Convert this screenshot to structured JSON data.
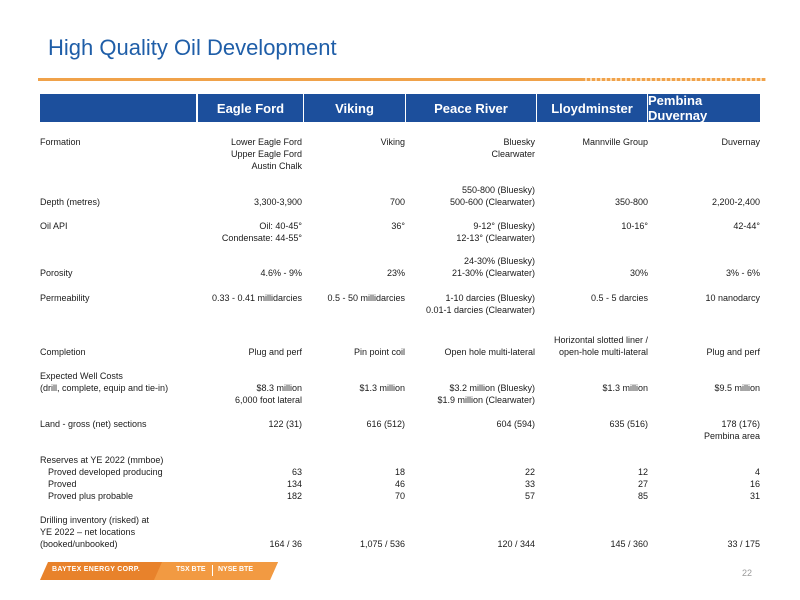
{
  "title": "High Quality Oil Development",
  "columns": [
    "Eagle Ford",
    "Viking",
    "Peace River",
    "Lloydminster",
    "Pembina Duvernay"
  ],
  "rows": {
    "formation": {
      "label": "Formation",
      "c1": [
        "Lower Eagle Ford",
        "Upper Eagle Ford",
        "Austin Chalk"
      ],
      "c2": [
        "Viking"
      ],
      "c3": [
        "Bluesky",
        "Clearwater"
      ],
      "c4": [
        "Mannville Group"
      ],
      "c5": [
        "Duvernay"
      ]
    },
    "depth": {
      "label": "Depth (metres)",
      "c1": "3,300-3,900",
      "c2": "700",
      "c3": [
        "550-800 (Bluesky)",
        "500-600 (Clearwater)"
      ],
      "c4": "350-800",
      "c5": "2,200-2,400"
    },
    "oil_api": {
      "label": "Oil API",
      "c1": [
        "Oil: 40-45°",
        "Condensate: 44-55°"
      ],
      "c2": "36°",
      "c3": [
        "9-12° (Bluesky)",
        "12-13° (Clearwater)"
      ],
      "c4": "10-16°",
      "c5": "42-44°"
    },
    "porosity": {
      "label": "Porosity",
      "c1": "4.6% - 9%",
      "c2": "23%",
      "c3": [
        "24-30% (Bluesky)",
        "21-30% (Clearwater)"
      ],
      "c4": "30%",
      "c5": "3% - 6%"
    },
    "permeability": {
      "label": "Permeability",
      "c1": "0.33 - 0.41 millidarcies",
      "c2": "0.5 - 50 millidarcies",
      "c3": [
        "1-10 darcies (Bluesky)",
        "0.01-1 darcies (Clearwater)"
      ],
      "c4": "0.5 - 5 darcies",
      "c5": "10 nanodarcy"
    },
    "completion": {
      "label": "Completion",
      "c1": "Plug and perf",
      "c2": "Pin point coil",
      "c3": "Open hole multi-lateral",
      "c4": [
        "Horizontal slotted liner /",
        "open-hole multi-lateral"
      ],
      "c5": "Plug and perf"
    },
    "well_costs": {
      "label": [
        "Expected Well Costs",
        "(drill, complete, equip and tie-in)"
      ],
      "c1": [
        "$8.3 million",
        "6,000 foot lateral"
      ],
      "c2": "$1.3 million",
      "c3": [
        "$3.2 million (Bluesky)",
        "$1.9 million (Clearwater)"
      ],
      "c4": "$1.3 million",
      "c5": "$9.5 million"
    },
    "land": {
      "label": "Land - gross (net) sections",
      "c1": "122 (31)",
      "c2": "616 (512)",
      "c3": "604 (594)",
      "c4": "635 (516)",
      "c5": [
        "178 (176)",
        "Pembina area"
      ]
    },
    "reserves": {
      "label": "Reserves at YE 2022 (mmboe)",
      "sub": [
        {
          "label": "Proved developed producing",
          "vals": [
            "63",
            "18",
            "22",
            "12",
            "4"
          ]
        },
        {
          "label": "Proved",
          "vals": [
            "134",
            "46",
            "33",
            "27",
            "16"
          ]
        },
        {
          "label": "Proved plus probable",
          "vals": [
            "182",
            "70",
            "57",
            "85",
            "31"
          ]
        }
      ]
    },
    "drilling": {
      "label": [
        "Drilling inventory (risked) at",
        "YE 2022 – net locations",
        "(booked/unbooked)"
      ],
      "vals": [
        "164 / 36",
        "1,075 / 536",
        "120 / 344",
        "145 / 360",
        "33 / 175"
      ]
    }
  },
  "footer": {
    "brand": "BAYTEX ENERGY CORP.",
    "tsx": "TSX BTE",
    "nyse": "NYSE BTE",
    "page": "22"
  },
  "colors": {
    "title": "#1f5ea8",
    "header_bg": "#1c4f9c",
    "rule": "#f0a24a",
    "footer_bar": "#e8822b"
  }
}
